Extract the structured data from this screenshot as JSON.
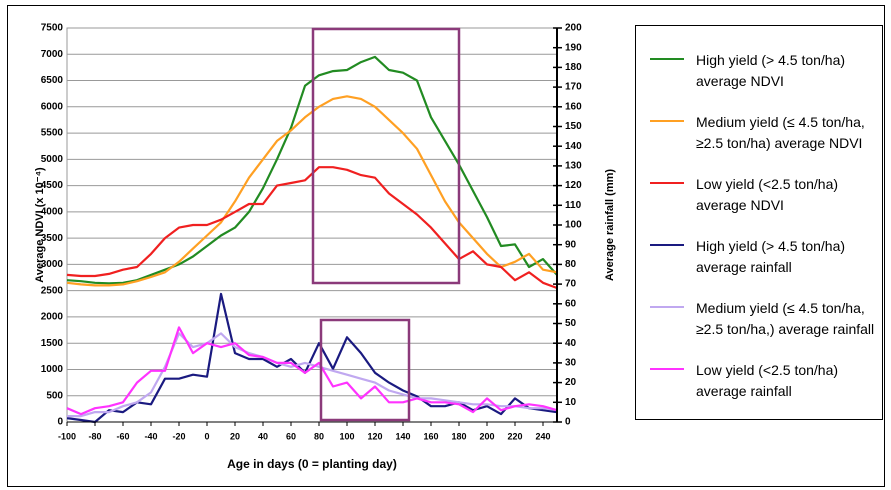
{
  "chart_data": {
    "type": "line",
    "x_label": "Age in days (0 = planting day)",
    "y_label": "Average NDVI (x 10⁻⁴)",
    "y2_label": "Average rainfall (mm)",
    "x": [
      -100,
      -90,
      -80,
      -70,
      -60,
      -50,
      -40,
      -30,
      -20,
      -10,
      0,
      10,
      20,
      30,
      40,
      50,
      60,
      70,
      80,
      90,
      100,
      110,
      120,
      130,
      140,
      150,
      160,
      170,
      180,
      190,
      200,
      210,
      220,
      230,
      240,
      250
    ],
    "xlim": [
      -100,
      250
    ],
    "xticks": [
      -100,
      -80,
      -60,
      -40,
      -20,
      0,
      20,
      40,
      60,
      80,
      100,
      120,
      140,
      160,
      180,
      200,
      220,
      240
    ],
    "ylim": [
      0,
      7500
    ],
    "yticks": [
      0,
      500,
      1000,
      1500,
      2000,
      2500,
      3000,
      3500,
      4000,
      4500,
      5000,
      5500,
      6000,
      6500,
      7000,
      7500
    ],
    "y2lim": [
      0,
      200
    ],
    "y2ticks": [
      0,
      10,
      20,
      30,
      40,
      50,
      60,
      70,
      80,
      90,
      100,
      110,
      120,
      130,
      140,
      150,
      160,
      170,
      180,
      190,
      200
    ],
    "grid": true,
    "series": [
      {
        "name": "High yield (> 4.5 ton/ha) average NDVI",
        "color": "#228b22",
        "values": [
          2700,
          2680,
          2650,
          2640,
          2650,
          2700,
          2800,
          2900,
          3000,
          3150,
          3350,
          3550,
          3700,
          4000,
          4450,
          5000,
          5600,
          6400,
          6600,
          6680,
          6700,
          6850,
          6950,
          6700,
          6650,
          6500,
          5800,
          5350,
          4900,
          4400,
          3900,
          3350,
          3380,
          2950,
          3100,
          2800
        ]
      },
      {
        "name": "Medium yield (≤ 4.5 ton/ha, ≥2.5 ton/ha) average NDVI",
        "color": "#ffa023",
        "values": [
          2650,
          2620,
          2600,
          2600,
          2620,
          2680,
          2760,
          2850,
          3050,
          3300,
          3550,
          3800,
          4200,
          4650,
          5000,
          5350,
          5550,
          5800,
          6000,
          6150,
          6200,
          6150,
          6000,
          5750,
          5500,
          5200,
          4700,
          4200,
          3800,
          3500,
          3200,
          2950,
          3050,
          3200,
          2900,
          2850
        ]
      },
      {
        "name": "Low yield (<2.5 ton/ha) average NDVI",
        "color": "#f02020",
        "values": [
          2800,
          2780,
          2780,
          2820,
          2900,
          2950,
          3200,
          3500,
          3700,
          3750,
          3750,
          3850,
          4000,
          4150,
          4150,
          4500,
          4550,
          4600,
          4850,
          4850,
          4800,
          4700,
          4650,
          4350,
          4150,
          3950,
          3700,
          3400,
          3100,
          3250,
          3000,
          2950,
          2700,
          2850,
          2650,
          2550
        ]
      },
      {
        "name": "High yield (> 4.5 ton/ha) average rainfall",
        "color": "#1a1a80",
        "axis": "y2",
        "values": [
          2,
          1,
          0,
          6,
          5,
          10,
          9,
          22,
          22,
          24,
          23,
          65,
          35,
          32,
          32,
          28,
          32,
          25,
          40,
          27,
          43,
          35,
          25,
          20,
          16,
          13,
          8,
          8,
          10,
          6,
          8,
          4,
          12,
          7,
          6,
          5
        ]
      },
      {
        "name": "Medium yield (≤ 4.5 ton/ha, ≥2.5 ton/ha,) average rainfall",
        "color": "#c0a8f0",
        "axis": "y2",
        "values": [
          3,
          3,
          5,
          5,
          8,
          10,
          15,
          28,
          45,
          38,
          40,
          45,
          38,
          35,
          33,
          30,
          28,
          30,
          28,
          26,
          24,
          22,
          20,
          16,
          14,
          12,
          12,
          11,
          10,
          9,
          9,
          8,
          8,
          7,
          7,
          6
        ]
      },
      {
        "name": "Low yield (<2.5 ton/ha) average rainfall",
        "color": "#ff33ff",
        "axis": "y2",
        "values": [
          7,
          4,
          7,
          8,
          10,
          20,
          26,
          26,
          48,
          35,
          40,
          38,
          40,
          34,
          33,
          30,
          30,
          25,
          30,
          18,
          20,
          12,
          18,
          10,
          10,
          12,
          10,
          10,
          9,
          5,
          12,
          6,
          8,
          9,
          8,
          6
        ]
      }
    ]
  }
}
